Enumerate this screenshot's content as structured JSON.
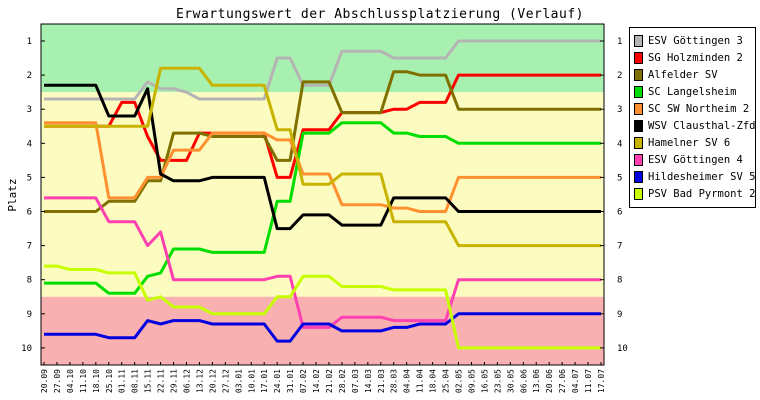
{
  "chart_data": {
    "type": "line",
    "title": "Erwartungswert der Abschlussplatzierung (Verlauf)",
    "ylabel": "Platz",
    "xlabel": "",
    "ylim": [
      1,
      10
    ],
    "y_ticks": [
      1,
      2,
      3,
      4,
      5,
      6,
      7,
      8,
      9,
      10
    ],
    "y_inverted": true,
    "grid": false,
    "legend_position": "right",
    "bands": [
      {
        "from": 0.5,
        "to": 2.5,
        "color": "#a8f0b0",
        "meaning": "promotion zone"
      },
      {
        "from": 2.5,
        "to": 8.5,
        "color": "#fcfcc0",
        "meaning": "middle zone"
      },
      {
        "from": 8.5,
        "to": 10.5,
        "color": "#f8b0b0",
        "meaning": "relegation zone"
      }
    ],
    "categories": [
      "20.09",
      "27.09",
      "04.10",
      "11.10",
      "18.10",
      "25.10",
      "01.11",
      "08.11",
      "15.11",
      "22.11",
      "29.11",
      "06.12",
      "13.12",
      "20.12",
      "27.12",
      "03.01",
      "10.01",
      "17.01",
      "24.01",
      "31.01",
      "07.02",
      "14.02",
      "21.02",
      "28.02",
      "07.03",
      "14.03",
      "21.03",
      "28.03",
      "04.04",
      "11.04",
      "18.04",
      "25.04",
      "02.05",
      "09.05",
      "16.05",
      "23.05",
      "30.05",
      "06.06",
      "13.06",
      "20.06",
      "27.06",
      "04.07",
      "11.07",
      "17.07"
    ],
    "series": [
      {
        "name": "ESV Göttingen 3",
        "color": "#b4b4b4",
        "values": [
          2.7,
          2.7,
          2.7,
          2.7,
          2.7,
          2.7,
          2.7,
          2.7,
          2.2,
          2.4,
          2.4,
          2.5,
          2.7,
          2.7,
          2.7,
          2.7,
          2.7,
          2.7,
          1.5,
          1.5,
          2.3,
          2.3,
          2.3,
          1.3,
          1.3,
          1.3,
          1.3,
          1.5,
          1.5,
          1.5,
          1.5,
          1.5,
          1.0,
          1.0,
          1.0,
          1.0,
          1.0,
          1.0,
          1.0,
          1.0,
          1.0,
          1.0,
          1.0,
          1.0
        ]
      },
      {
        "name": "SG Holzminden 2",
        "color": "#ff0000",
        "values": [
          3.5,
          3.5,
          3.5,
          3.5,
          3.5,
          3.5,
          2.8,
          2.8,
          3.8,
          4.5,
          4.5,
          4.5,
          3.7,
          3.7,
          3.7,
          3.7,
          3.7,
          3.7,
          5.0,
          5.0,
          3.6,
          3.6,
          3.6,
          3.1,
          3.1,
          3.1,
          3.1,
          3.0,
          3.0,
          2.8,
          2.8,
          2.8,
          2.0,
          2.0,
          2.0,
          2.0,
          2.0,
          2.0,
          2.0,
          2.0,
          2.0,
          2.0,
          2.0,
          2.0
        ]
      },
      {
        "name": "Alfelder SV",
        "color": "#807000",
        "values": [
          6.0,
          6.0,
          6.0,
          6.0,
          6.0,
          5.7,
          5.7,
          5.7,
          5.1,
          5.1,
          3.7,
          3.7,
          3.7,
          3.8,
          3.8,
          3.8,
          3.8,
          3.8,
          4.5,
          4.5,
          2.2,
          2.2,
          2.2,
          3.1,
          3.1,
          3.1,
          3.1,
          1.9,
          1.9,
          2.0,
          2.0,
          2.0,
          3.0,
          3.0,
          3.0,
          3.0,
          3.0,
          3.0,
          3.0,
          3.0,
          3.0,
          3.0,
          3.0,
          3.0
        ]
      },
      {
        "name": "SC Langelsheim",
        "color": "#00dd00",
        "values": [
          8.1,
          8.1,
          8.1,
          8.1,
          8.1,
          8.4,
          8.4,
          8.4,
          7.9,
          7.8,
          7.1,
          7.1,
          7.1,
          7.2,
          7.2,
          7.2,
          7.2,
          7.2,
          5.7,
          5.7,
          3.7,
          3.7,
          3.7,
          3.4,
          3.4,
          3.4,
          3.4,
          3.7,
          3.7,
          3.8,
          3.8,
          3.8,
          4.0,
          4.0,
          4.0,
          4.0,
          4.0,
          4.0,
          4.0,
          4.0,
          4.0,
          4.0,
          4.0,
          4.0
        ]
      },
      {
        "name": "SC SW Northeim 2",
        "color": "#ff9030",
        "values": [
          3.4,
          3.4,
          3.4,
          3.4,
          3.4,
          5.6,
          5.6,
          5.6,
          5.0,
          5.0,
          4.2,
          4.2,
          4.2,
          3.7,
          3.7,
          3.7,
          3.7,
          3.7,
          3.9,
          3.9,
          4.9,
          4.9,
          4.9,
          5.8,
          5.8,
          5.8,
          5.8,
          5.9,
          5.9,
          6.0,
          6.0,
          6.0,
          5.0,
          5.0,
          5.0,
          5.0,
          5.0,
          5.0,
          5.0,
          5.0,
          5.0,
          5.0,
          5.0,
          5.0
        ]
      },
      {
        "name": "WSV Clausthal-Zfd",
        "color": "#000000",
        "values": [
          2.3,
          2.3,
          2.3,
          2.3,
          2.3,
          3.2,
          3.2,
          3.2,
          2.4,
          4.9,
          5.1,
          5.1,
          5.1,
          5.0,
          5.0,
          5.0,
          5.0,
          5.0,
          6.5,
          6.5,
          6.1,
          6.1,
          6.1,
          6.4,
          6.4,
          6.4,
          6.4,
          5.6,
          5.6,
          5.6,
          5.6,
          5.6,
          6.0,
          6.0,
          6.0,
          6.0,
          6.0,
          6.0,
          6.0,
          6.0,
          6.0,
          6.0,
          6.0,
          6.0
        ]
      },
      {
        "name": "Hamelner SV 6",
        "color": "#c8b400",
        "values": [
          3.5,
          3.5,
          3.5,
          3.5,
          3.5,
          3.5,
          3.5,
          3.5,
          3.5,
          1.8,
          1.8,
          1.8,
          1.8,
          2.3,
          2.3,
          2.3,
          2.3,
          2.3,
          3.6,
          3.6,
          5.2,
          5.2,
          5.2,
          4.9,
          4.9,
          4.9,
          4.9,
          6.3,
          6.3,
          6.3,
          6.3,
          6.3,
          7.0,
          7.0,
          7.0,
          7.0,
          7.0,
          7.0,
          7.0,
          7.0,
          7.0,
          7.0,
          7.0,
          7.0
        ]
      },
      {
        "name": "ESV Göttingen 4",
        "color": "#ff40b0",
        "values": [
          5.6,
          5.6,
          5.6,
          5.6,
          5.6,
          6.3,
          6.3,
          6.3,
          7.0,
          6.6,
          8.0,
          8.0,
          8.0,
          8.0,
          8.0,
          8.0,
          8.0,
          8.0,
          7.9,
          7.9,
          9.4,
          9.4,
          9.4,
          9.1,
          9.1,
          9.1,
          9.1,
          9.2,
          9.2,
          9.2,
          9.2,
          9.2,
          8.0,
          8.0,
          8.0,
          8.0,
          8.0,
          8.0,
          8.0,
          8.0,
          8.0,
          8.0,
          8.0,
          8.0
        ]
      },
      {
        "name": "Hildesheimer SV 5",
        "color": "#0000e0",
        "values": [
          9.6,
          9.6,
          9.6,
          9.6,
          9.6,
          9.7,
          9.7,
          9.7,
          9.2,
          9.3,
          9.2,
          9.2,
          9.2,
          9.3,
          9.3,
          9.3,
          9.3,
          9.3,
          9.8,
          9.8,
          9.3,
          9.3,
          9.3,
          9.5,
          9.5,
          9.5,
          9.5,
          9.4,
          9.4,
          9.3,
          9.3,
          9.3,
          9.0,
          9.0,
          9.0,
          9.0,
          9.0,
          9.0,
          9.0,
          9.0,
          9.0,
          9.0,
          9.0,
          9.0
        ]
      },
      {
        "name": "PSV Bad Pyrmont 2",
        "color": "#c8ff00",
        "values": [
          7.6,
          7.6,
          7.7,
          7.7,
          7.7,
          7.8,
          7.8,
          7.8,
          8.6,
          8.5,
          8.8,
          8.8,
          8.8,
          9.0,
          9.0,
          9.0,
          9.0,
          9.0,
          8.5,
          8.5,
          7.9,
          7.9,
          7.9,
          8.2,
          8.2,
          8.2,
          8.2,
          8.3,
          8.3,
          8.3,
          8.3,
          8.3,
          10.0,
          10.0,
          10.0,
          10.0,
          10.0,
          10.0,
          10.0,
          10.0,
          10.0,
          10.0,
          10.0,
          10.0
        ]
      }
    ]
  }
}
